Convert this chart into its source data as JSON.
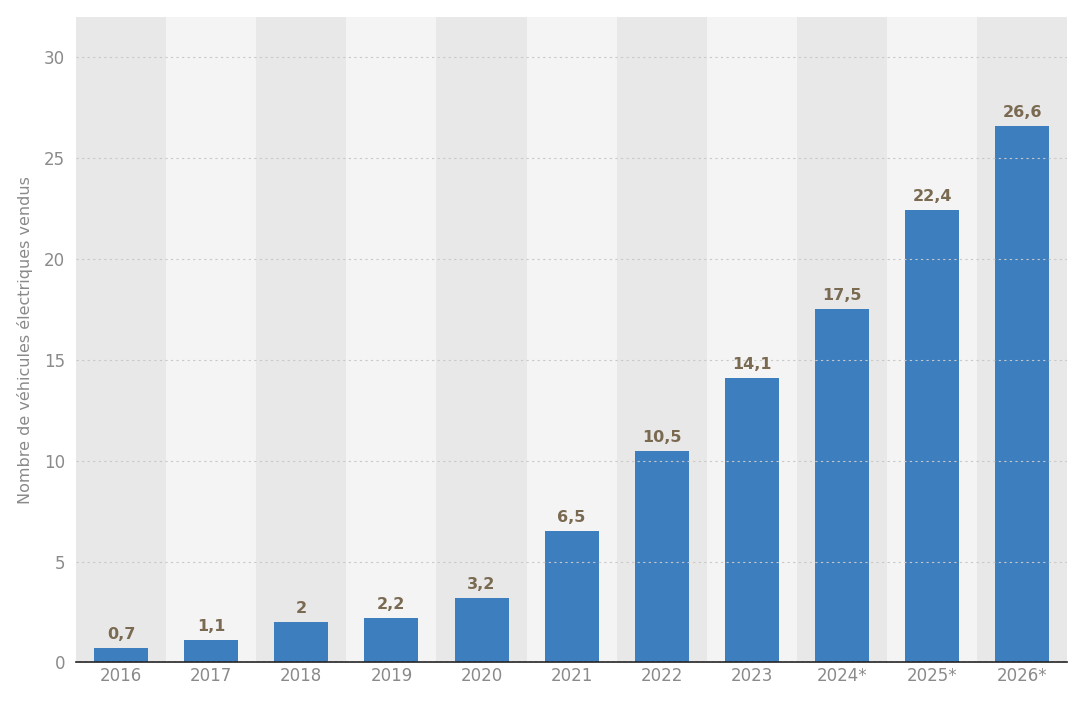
{
  "categories": [
    "2016",
    "2017",
    "2018",
    "2019",
    "2020",
    "2021",
    "2022",
    "2023",
    "2024*",
    "2025*",
    "2026*"
  ],
  "values": [
    0.7,
    1.1,
    2.0,
    2.2,
    3.2,
    6.5,
    10.5,
    14.1,
    17.5,
    22.4,
    26.6
  ],
  "bar_color": "#3d7ebf",
  "outer_bg_color": "#ffffff",
  "plot_bg_color": "#f4f4f4",
  "col_band_color": "#e8e8e8",
  "col_band_alt_color": "#f4f4f4",
  "ylabel": "Nombre de véhicules électriques vendus",
  "yticks": [
    0,
    5,
    10,
    15,
    20,
    25,
    30
  ],
  "ylim": [
    0,
    32
  ],
  "grid_color": "#c8c8c8",
  "label_color": "#7a6a52",
  "tick_color": "#8a8a8a",
  "bottom_line_color": "#222222",
  "value_label_fontsize": 11.5,
  "axis_label_fontsize": 11.5,
  "tick_fontsize": 12
}
